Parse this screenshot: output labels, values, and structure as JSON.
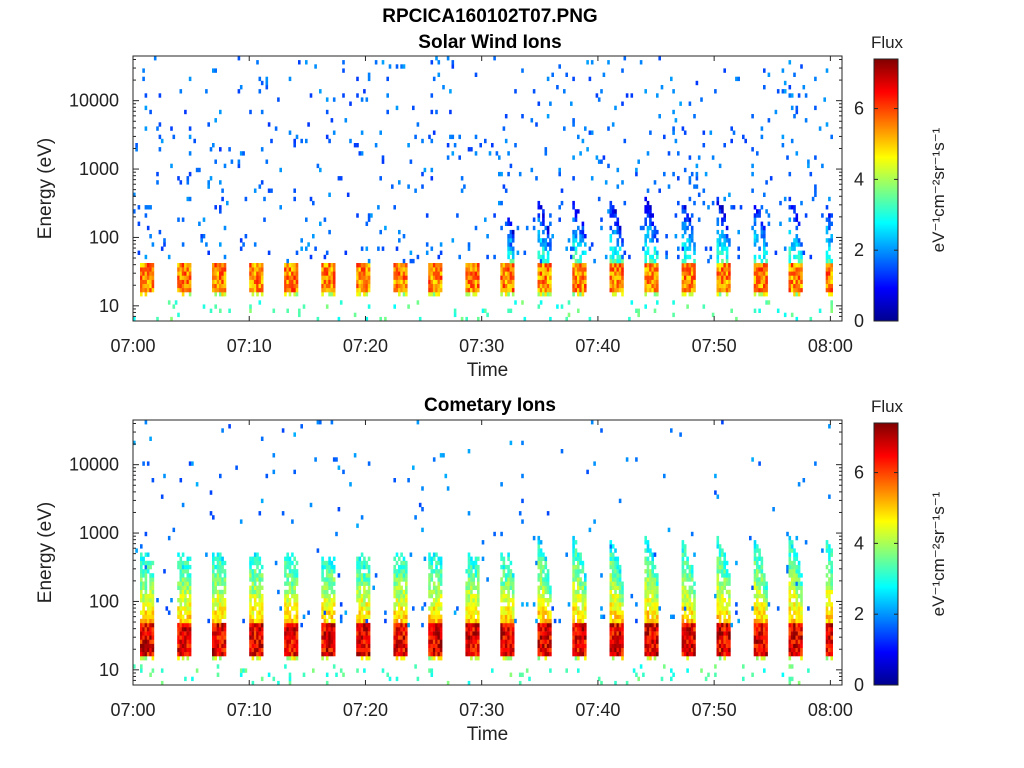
{
  "figure": {
    "title": "RPCICA160102T07.PNG"
  },
  "chart_data": [
    {
      "type": "heatmap",
      "title": "Solar Wind Ions",
      "xlabel": "Time",
      "ylabel": "Energy (eV)",
      "x_ticks": [
        "07:00",
        "07:10",
        "07:20",
        "07:30",
        "07:40",
        "07:50",
        "08:00"
      ],
      "xlim_minutes": [
        0,
        61
      ],
      "y_ticks": [
        "10",
        "100",
        "1000",
        "10000"
      ],
      "y_tick_values": [
        10,
        100,
        1000,
        10000
      ],
      "ylim": [
        6,
        45000
      ],
      "yscale": "log",
      "colorbar": {
        "title": "Flux",
        "unit": "eV⁻¹cm⁻²sr⁻¹s⁻¹",
        "ticks": [
          "0",
          "2",
          "4",
          "6"
        ],
        "range": [
          0,
          7.4
        ],
        "colormap": "jet"
      },
      "description_of_features": {
        "sweep_period_minutes": 3.1,
        "core_energy_range_eV": [
          20,
          40
        ],
        "core_flux": 5.5,
        "dispersed_tails_after_minute": 32,
        "sparse_background_flux": 1.3
      }
    },
    {
      "type": "heatmap",
      "title": "Cometary Ions",
      "xlabel": "Time",
      "ylabel": "Energy (eV)",
      "x_ticks": [
        "07:00",
        "07:10",
        "07:20",
        "07:30",
        "07:40",
        "07:50",
        "08:00"
      ],
      "xlim_minutes": [
        0,
        61
      ],
      "y_ticks": [
        "10",
        "100",
        "1000",
        "10000"
      ],
      "y_tick_values": [
        10,
        100,
        1000,
        10000
      ],
      "ylim": [
        6,
        45000
      ],
      "yscale": "log",
      "colorbar": {
        "title": "Flux",
        "unit": "eV⁻¹cm⁻²sr⁻¹s⁻¹",
        "ticks": [
          "0",
          "2",
          "4",
          "6"
        ],
        "range": [
          0,
          7.4
        ],
        "colormap": "jet"
      },
      "description_of_features": {
        "sweep_period_minutes": 3.1,
        "core_energy_range_eV": [
          20,
          45
        ],
        "core_flux": 6.6,
        "upper_envelope_eV": 800,
        "dispersed_tails_after_minute": 32,
        "sparse_background_flux": 1.4
      }
    }
  ]
}
